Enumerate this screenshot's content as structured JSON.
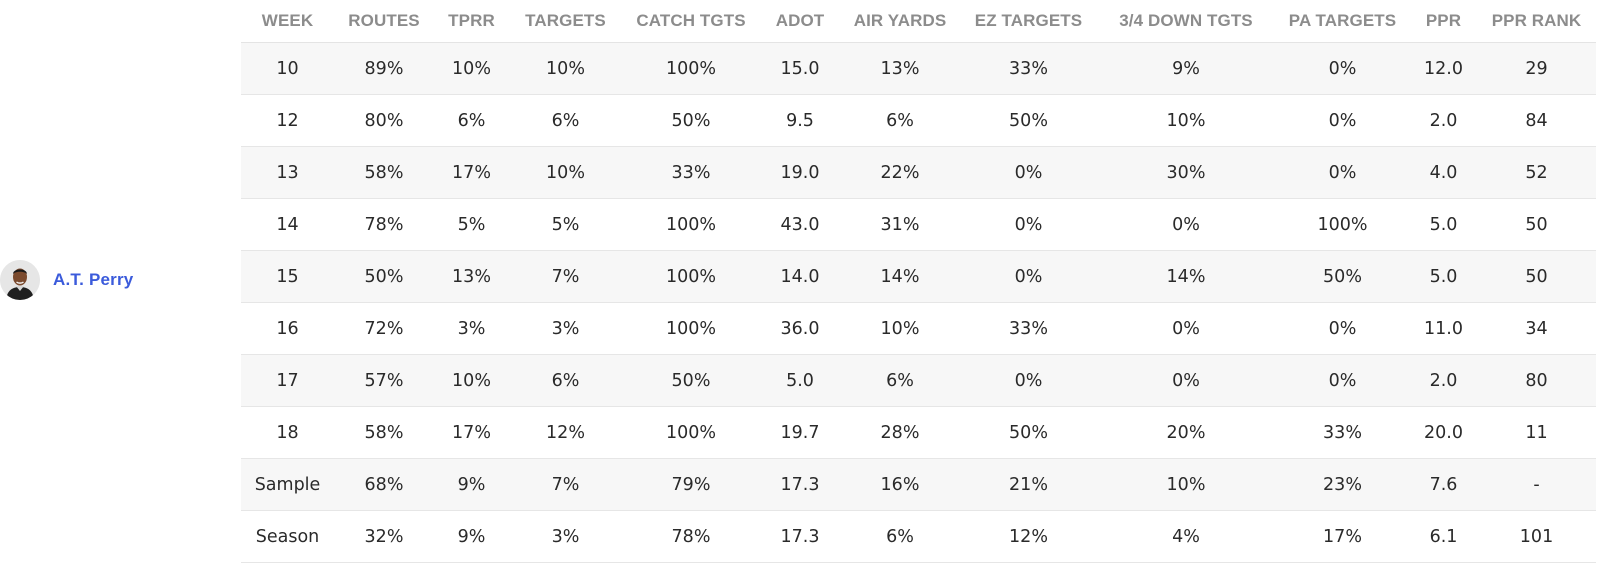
{
  "player": {
    "name": "A.T. Perry",
    "avatar_icon": "player-headshot-icon"
  },
  "columns": [
    "WEEK",
    "ROUTES",
    "TPRR",
    "TARGETS",
    "CATCH TGTS",
    "ADOT",
    "AIR YARDS",
    "EZ TARGETS",
    "3/4 DOWN TGTS",
    "PA TARGETS",
    "PPR",
    "PPR RANK"
  ],
  "rows": [
    [
      "10",
      "89%",
      "10%",
      "10%",
      "100%",
      "15.0",
      "13%",
      "33%",
      "9%",
      "0%",
      "12.0",
      "29"
    ],
    [
      "12",
      "80%",
      "6%",
      "6%",
      "50%",
      "9.5",
      "6%",
      "50%",
      "10%",
      "0%",
      "2.0",
      "84"
    ],
    [
      "13",
      "58%",
      "17%",
      "10%",
      "33%",
      "19.0",
      "22%",
      "0%",
      "30%",
      "0%",
      "4.0",
      "52"
    ],
    [
      "14",
      "78%",
      "5%",
      "5%",
      "100%",
      "43.0",
      "31%",
      "0%",
      "0%",
      "100%",
      "5.0",
      "50"
    ],
    [
      "15",
      "50%",
      "13%",
      "7%",
      "100%",
      "14.0",
      "14%",
      "0%",
      "14%",
      "50%",
      "5.0",
      "50"
    ],
    [
      "16",
      "72%",
      "3%",
      "3%",
      "100%",
      "36.0",
      "10%",
      "33%",
      "0%",
      "0%",
      "11.0",
      "34"
    ],
    [
      "17",
      "57%",
      "10%",
      "6%",
      "50%",
      "5.0",
      "6%",
      "0%",
      "0%",
      "0%",
      "2.0",
      "80"
    ],
    [
      "18",
      "58%",
      "17%",
      "12%",
      "100%",
      "19.7",
      "28%",
      "50%",
      "20%",
      "33%",
      "20.0",
      "11"
    ],
    [
      "Sample",
      "68%",
      "9%",
      "7%",
      "79%",
      "17.3",
      "16%",
      "21%",
      "10%",
      "23%",
      "7.6",
      "-"
    ],
    [
      "Season",
      "32%",
      "9%",
      "3%",
      "78%",
      "17.3",
      "6%",
      "12%",
      "4%",
      "17%",
      "6.1",
      "101"
    ]
  ],
  "colors": {
    "link": "#3b5bdb",
    "header_text": "#8c8c8c",
    "stripe": "#f7f7f7"
  }
}
